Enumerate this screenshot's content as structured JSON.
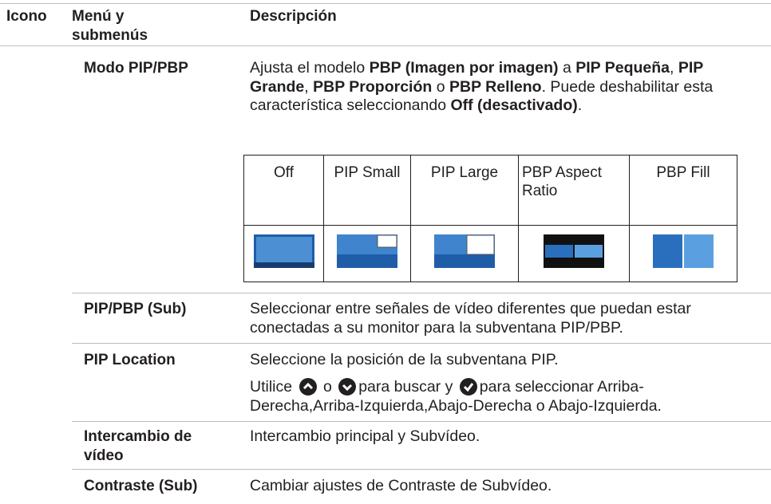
{
  "header": {
    "icon": "Icono",
    "menu": "Menú y submenús",
    "description": "Descripción"
  },
  "rows": [
    {
      "menu": "Modo PIP/PBP",
      "description": [
        {
          "text": "Ajusta el modelo ",
          "bold": false
        },
        {
          "text": "PBP (Imagen por imagen)",
          "bold": true
        },
        {
          "text": " a ",
          "bold": false
        },
        {
          "text": "PIP Pequeña",
          "bold": true
        },
        {
          "text": ", ",
          "bold": false
        },
        {
          "text": "PIP Grande",
          "bold": true
        },
        {
          "text": ", ",
          "bold": false
        },
        {
          "text": "PBP Proporción",
          "bold": true
        },
        {
          "text": " o ",
          "bold": false
        },
        {
          "text": "PBP Relleno",
          "bold": true
        },
        {
          "text": ". Puede deshabilitar esta característica seleccionando ",
          "bold": false
        },
        {
          "text": "Off (desactivado)",
          "bold": true
        },
        {
          "text": ".",
          "bold": false
        }
      ],
      "table": {
        "columns": [
          "Off",
          "PIP Small",
          "PIP Large",
          "PBP Aspect Ratio",
          "PBP Fill"
        ]
      }
    },
    {
      "menu": "PIP/PBP (Sub)",
      "description": "Seleccionar entre señales de vídeo diferentes que puedan estar conectadas a su monitor para la subventana PIP/PBP."
    },
    {
      "menu": "PIP Location",
      "description": "Seleccione la posición de la subventana PIP.",
      "note": [
        "Utilice ",
        "o ",
        "para buscar y ",
        "para seleccionar Arriba-Derecha,Arriba-Izquierda,Abajo-Derecha o Abajo-Izquierda."
      ]
    },
    {
      "menu": "Intercambio de vídeo",
      "description": "Intercambio principal y Subvídeo."
    },
    {
      "menu": "Contraste (Sub)",
      "description": "Cambiar ajustes de Contraste de Subvídeo."
    }
  ]
}
